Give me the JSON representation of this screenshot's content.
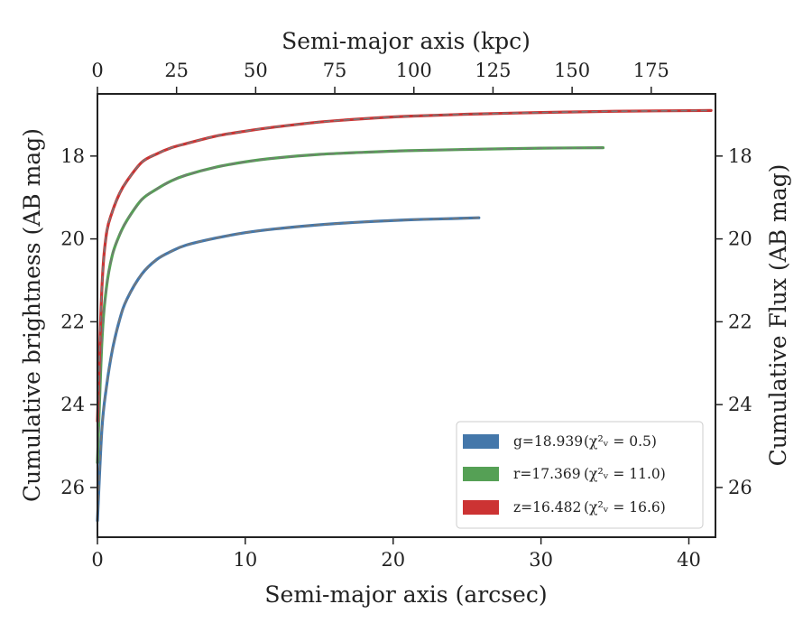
{
  "chart_data": {
    "type": "line",
    "xlabel": "Semi-major axis (arcsec)",
    "ylabel": "Cumulative brightness (AB mag)",
    "top_xlabel": "Semi-major axis (kpc)",
    "right_ylabel": "Cumulative Flux (AB mag)",
    "xlim": [
      0,
      41.8
    ],
    "ylim": [
      27.2,
      16.5
    ],
    "y_inverted": true,
    "top_xlim": [
      0,
      195.3
    ],
    "xticks": [
      0,
      10,
      20,
      30,
      40
    ],
    "yticks": [
      18,
      20,
      22,
      24,
      26
    ],
    "top_xticks": [
      0,
      25,
      50,
      75,
      100,
      125,
      150,
      175
    ],
    "legend_position": "lower-right",
    "model_line_color": "#777777",
    "series": [
      {
        "name": "g",
        "legend_label": "g=18.939",
        "chi2": "(χ²ᵥ = 0.5)",
        "color": "#4477aa",
        "x": [
          0.0,
          0.3,
          0.6,
          1.0,
          1.5,
          2.0,
          3.0,
          4.0,
          5.0,
          6.0,
          8.0,
          10.0,
          12.0,
          15.0,
          18.0,
          21.0,
          24.0,
          25.8
        ],
        "y": [
          26.8,
          24.6,
          23.6,
          22.7,
          21.95,
          21.45,
          20.85,
          20.5,
          20.3,
          20.15,
          19.98,
          19.85,
          19.76,
          19.66,
          19.59,
          19.54,
          19.51,
          19.49
        ]
      },
      {
        "name": "r",
        "legend_label": "r=17.369",
        "chi2": "(χ²ᵥ = 11.0)",
        "color": "#55a055",
        "x": [
          0.0,
          0.3,
          0.6,
          1.0,
          1.5,
          2.0,
          3.0,
          4.0,
          5.0,
          6.0,
          8.0,
          10.0,
          12.0,
          15.0,
          18.0,
          21.0,
          25.0,
          30.0,
          34.2
        ],
        "y": [
          25.4,
          22.5,
          21.2,
          20.4,
          19.9,
          19.55,
          19.05,
          18.8,
          18.6,
          18.46,
          18.27,
          18.14,
          18.05,
          17.96,
          17.91,
          17.87,
          17.84,
          17.81,
          17.8
        ]
      },
      {
        "name": "z",
        "legend_label": "z=16.482",
        "chi2": "(χ²ᵥ = 16.6)",
        "color": "#cc3333",
        "x": [
          0.0,
          0.3,
          0.6,
          1.0,
          1.5,
          2.0,
          3.0,
          4.0,
          5.0,
          6.0,
          8.0,
          10.0,
          12.0,
          15.0,
          18.0,
          21.0,
          25.0,
          30.0,
          35.0,
          41.5
        ],
        "y": [
          24.4,
          21.2,
          19.9,
          19.35,
          18.9,
          18.6,
          18.15,
          17.95,
          17.8,
          17.7,
          17.52,
          17.4,
          17.3,
          17.18,
          17.1,
          17.04,
          16.99,
          16.95,
          16.92,
          16.9
        ]
      }
    ]
  }
}
